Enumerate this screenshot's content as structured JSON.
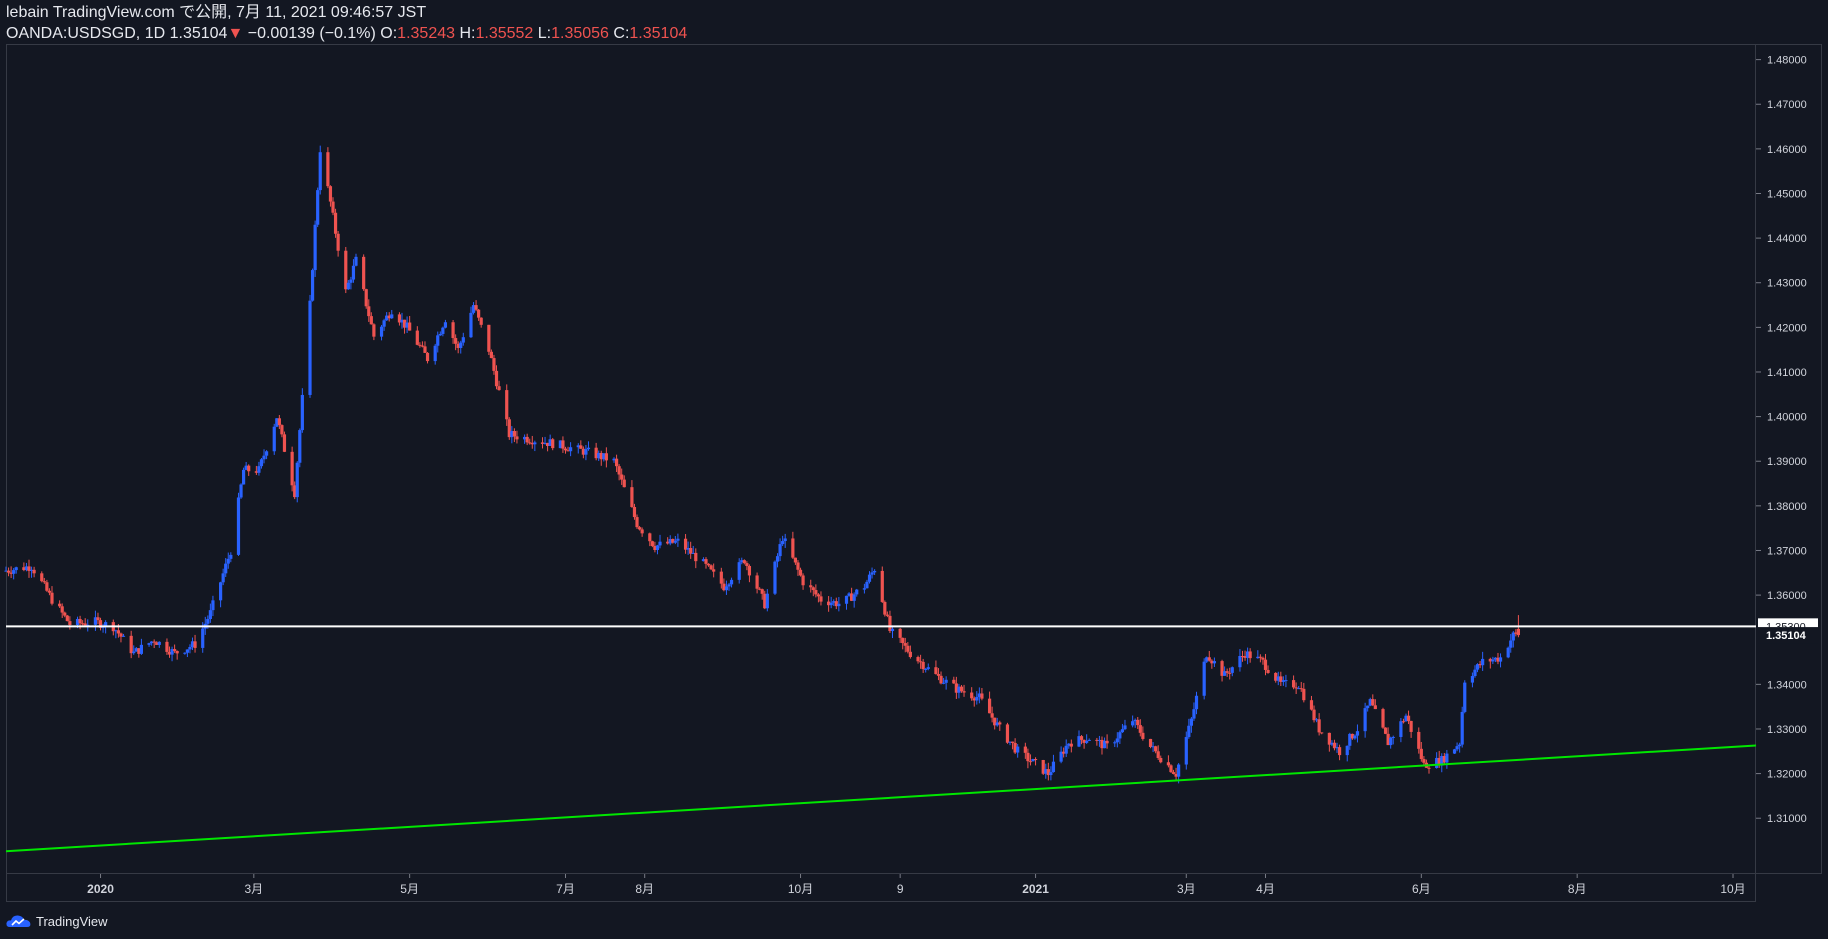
{
  "header": {
    "publisher": "lebain TradingView.com で公開, 7月 11, 2021 09:46:57 JST",
    "symbol": "OANDA:USDSGD, 1D",
    "last": "1.35104",
    "change_icon": "triangle-down-icon",
    "change": "−0.00139 (−0.1%)",
    "o_label": "O:",
    "o_value": "1.35243",
    "h_label": "H:",
    "h_value": "1.35552",
    "l_label": "L:",
    "l_value": "1.35056",
    "c_label": "C:",
    "c_value": "1.35104"
  },
  "footer": {
    "brand": "TradingView",
    "icon": "tradingview-cloud-icon"
  },
  "colors": {
    "background": "#131722",
    "up": "#2962ff",
    "down": "#ef5350",
    "support": "#00e600",
    "resistance": "#ffffff"
  },
  "chart_data": {
    "type": "candlestick",
    "title": "",
    "xlabel": "",
    "ylabel": "",
    "ylim": [
      1.2975,
      1.4835
    ],
    "grid": false,
    "y_ticks": [
      "1.48000",
      "1.47000",
      "1.46000",
      "1.45000",
      "1.44000",
      "1.43000",
      "1.42000",
      "1.41000",
      "1.40000",
      "1.39000",
      "1.38000",
      "1.37000",
      "1.36000",
      "1.34000",
      "1.33000",
      "1.32000",
      "1.31000"
    ],
    "x_ticks": [
      {
        "label": "2020",
        "bold": true,
        "date": "2020-01-01"
      },
      {
        "label": "3月",
        "bold": false,
        "date": "2020-03-01"
      },
      {
        "label": "5月",
        "bold": false,
        "date": "2020-05-01"
      },
      {
        "label": "7月",
        "bold": false,
        "date": "2020-07-01"
      },
      {
        "label": "8月",
        "bold": false,
        "date": "2020-08-01"
      },
      {
        "label": "10月",
        "bold": false,
        "date": "2020-10-01"
      },
      {
        "label": "9",
        "bold": false,
        "date": "2020-11-09"
      },
      {
        "label": "2021",
        "bold": true,
        "date": "2021-01-01"
      },
      {
        "label": "3月",
        "bold": false,
        "date": "2021-03-01"
      },
      {
        "label": "4月",
        "bold": false,
        "date": "2021-04-01"
      },
      {
        "label": "6月",
        "bold": false,
        "date": "2021-06-01"
      },
      {
        "label": "8月",
        "bold": false,
        "date": "2021-08-01"
      },
      {
        "label": "10月",
        "bold": false,
        "date": "2021-10-01"
      }
    ],
    "lines": [
      {
        "name": "resistance",
        "color": "#ffffff",
        "price": 1.353,
        "label": "1.35300"
      },
      {
        "name": "support",
        "color": "#00e600",
        "start": {
          "date": "2019-11-25",
          "price": 1.3026
        },
        "end": {
          "date": "2021-10-10",
          "price": 1.3263
        }
      }
    ],
    "last_price_label": "1.35104",
    "closes": [
      {
        "date": "2019-11-25",
        "close": 1.3655
      },
      {
        "date": "2019-12-05",
        "close": 1.3665
      },
      {
        "date": "2019-12-13",
        "close": 1.359
      },
      {
        "date": "2019-12-20",
        "close": 1.3535
      },
      {
        "date": "2019-12-30",
        "close": 1.354
      },
      {
        "date": "2020-01-06",
        "close": 1.353
      },
      {
        "date": "2020-01-14",
        "close": 1.347
      },
      {
        "date": "2020-01-22",
        "close": 1.35
      },
      {
        "date": "2020-01-30",
        "close": 1.347
      },
      {
        "date": "2020-02-07",
        "close": 1.349
      },
      {
        "date": "2020-02-13",
        "close": 1.356
      },
      {
        "date": "2020-02-21",
        "close": 1.37
      },
      {
        "date": "2020-02-26",
        "close": 1.388
      },
      {
        "date": "2020-03-03",
        "close": 1.388
      },
      {
        "date": "2020-03-10",
        "close": 1.4
      },
      {
        "date": "2020-03-17",
        "close": 1.383
      },
      {
        "date": "2020-03-23",
        "close": 1.425
      },
      {
        "date": "2020-03-27",
        "close": 1.46
      },
      {
        "date": "2020-03-31",
        "close": 1.448
      },
      {
        "date": "2020-04-06",
        "close": 1.428
      },
      {
        "date": "2020-04-10",
        "close": 1.435
      },
      {
        "date": "2020-04-17",
        "close": 1.418
      },
      {
        "date": "2020-04-24",
        "close": 1.424
      },
      {
        "date": "2020-04-30",
        "close": 1.42
      },
      {
        "date": "2020-05-08",
        "close": 1.413
      },
      {
        "date": "2020-05-15",
        "close": 1.422
      },
      {
        "date": "2020-05-20",
        "close": 1.415
      },
      {
        "date": "2020-05-26",
        "close": 1.425
      },
      {
        "date": "2020-06-01",
        "close": 1.415
      },
      {
        "date": "2020-06-09",
        "close": 1.396
      },
      {
        "date": "2020-06-17",
        "close": 1.395
      },
      {
        "date": "2020-06-26",
        "close": 1.394
      },
      {
        "date": "2020-07-03",
        "close": 1.393
      },
      {
        "date": "2020-07-10",
        "close": 1.392
      },
      {
        "date": "2020-07-20",
        "close": 1.39
      },
      {
        "date": "2020-07-29",
        "close": 1.376
      },
      {
        "date": "2020-08-05",
        "close": 1.371
      },
      {
        "date": "2020-08-14",
        "close": 1.372
      },
      {
        "date": "2020-08-24",
        "close": 1.367
      },
      {
        "date": "2020-09-01",
        "close": 1.362
      },
      {
        "date": "2020-09-09",
        "close": 1.368
      },
      {
        "date": "2020-09-17",
        "close": 1.358
      },
      {
        "date": "2020-09-24",
        "close": 1.373
      },
      {
        "date": "2020-10-02",
        "close": 1.363
      },
      {
        "date": "2020-10-09",
        "close": 1.359
      },
      {
        "date": "2020-10-17",
        "close": 1.358
      },
      {
        "date": "2020-10-26",
        "close": 1.362
      },
      {
        "date": "2020-10-30",
        "close": 1.366
      },
      {
        "date": "2020-11-05",
        "close": 1.352
      },
      {
        "date": "2020-11-13",
        "close": 1.347
      },
      {
        "date": "2020-11-23",
        "close": 1.342
      },
      {
        "date": "2020-12-01",
        "close": 1.339
      },
      {
        "date": "2020-12-10",
        "close": 1.337
      },
      {
        "date": "2020-12-18",
        "close": 1.33
      },
      {
        "date": "2020-12-25",
        "close": 1.325
      },
      {
        "date": "2021-01-06",
        "close": 1.32
      },
      {
        "date": "2021-01-14",
        "close": 1.327
      },
      {
        "date": "2021-01-22",
        "close": 1.328
      },
      {
        "date": "2021-01-29",
        "close": 1.326
      },
      {
        "date": "2021-02-08",
        "close": 1.332
      },
      {
        "date": "2021-02-15",
        "close": 1.326
      },
      {
        "date": "2021-02-25",
        "close": 1.32
      },
      {
        "date": "2021-03-03",
        "close": 1.332
      },
      {
        "date": "2021-03-09",
        "close": 1.347
      },
      {
        "date": "2021-03-16",
        "close": 1.342
      },
      {
        "date": "2021-03-24",
        "close": 1.347
      },
      {
        "date": "2021-03-31",
        "close": 1.345
      },
      {
        "date": "2021-04-07",
        "close": 1.34
      },
      {
        "date": "2021-04-14",
        "close": 1.34
      },
      {
        "date": "2021-04-22",
        "close": 1.33
      },
      {
        "date": "2021-04-30",
        "close": 1.325
      },
      {
        "date": "2021-05-07",
        "close": 1.33
      },
      {
        "date": "2021-05-12",
        "close": 1.336
      },
      {
        "date": "2021-05-19",
        "close": 1.327
      },
      {
        "date": "2021-05-26",
        "close": 1.333
      },
      {
        "date": "2021-06-02",
        "close": 1.322
      },
      {
        "date": "2021-06-09",
        "close": 1.323
      },
      {
        "date": "2021-06-16",
        "close": 1.327
      },
      {
        "date": "2021-06-18",
        "close": 1.341
      },
      {
        "date": "2021-06-25",
        "close": 1.345
      },
      {
        "date": "2021-07-02",
        "close": 1.346
      },
      {
        "date": "2021-07-07",
        "close": 1.351
      },
      {
        "date": "2021-07-09",
        "close": 1.35104
      }
    ]
  }
}
